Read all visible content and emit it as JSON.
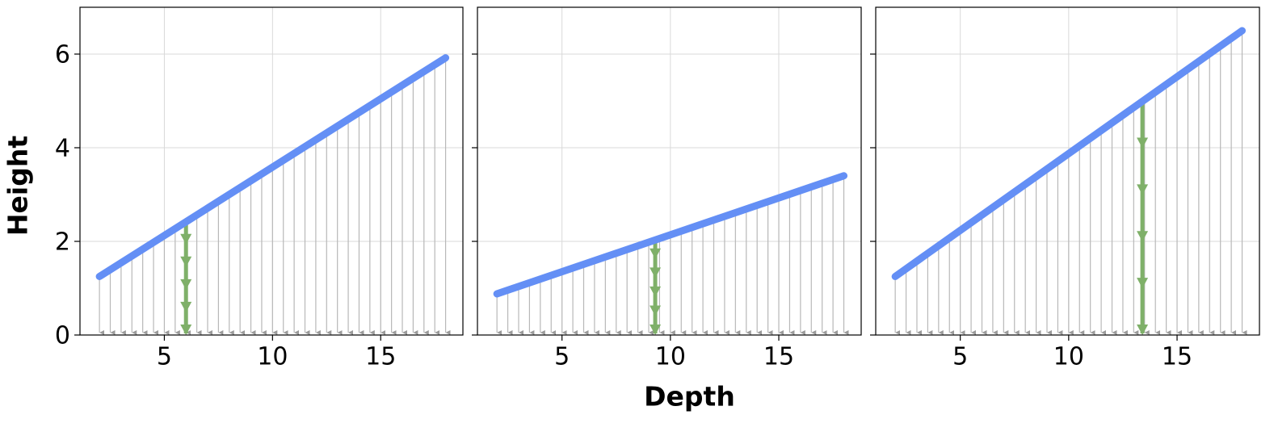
{
  "chart_data": [
    {
      "type": "arrow-field",
      "y_label": "Height",
      "xlim": [
        1.1,
        18.8
      ],
      "ylim": [
        0,
        7
      ],
      "xticks": [
        5,
        10,
        15
      ],
      "yticks": [
        0,
        2,
        4,
        6
      ],
      "grid": true,
      "line": {
        "color": "#648ff5",
        "x": [
          2,
          18
        ],
        "y": [
          1.25,
          5.92
        ]
      },
      "arrows": {
        "color": "#b8b8b8",
        "x": [
          2,
          2.5,
          3,
          3.5,
          4,
          4.5,
          5,
          5.5,
          6,
          6.5,
          7,
          7.5,
          8,
          8.5,
          9,
          9.5,
          10,
          10.5,
          11,
          11.5,
          12,
          12.5,
          13,
          13.5,
          14,
          14.5,
          15,
          15.5,
          16,
          16.5,
          17,
          17.5,
          18
        ],
        "tops": [
          1.25,
          1.4,
          1.54,
          1.69,
          1.83,
          1.98,
          2.13,
          2.27,
          2.42,
          2.56,
          2.71,
          2.86,
          3.0,
          3.15,
          3.29,
          3.44,
          3.59,
          3.73,
          3.88,
          4.02,
          4.17,
          4.32,
          4.46,
          4.61,
          4.75,
          4.9,
          5.05,
          5.19,
          5.34,
          5.48,
          5.63,
          5.78,
          5.92
        ]
      },
      "highlight": {
        "color": "#7fb069",
        "x": 6,
        "y": 2.42
      }
    },
    {
      "type": "arrow-field",
      "x_label": "Depth",
      "sharey": true,
      "xlim": [
        1.1,
        18.8
      ],
      "xticks": [
        5,
        10,
        15
      ],
      "grid": true,
      "line": {
        "color": "#648ff5",
        "x": [
          2,
          18
        ],
        "y": [
          0.88,
          3.4
        ]
      },
      "arrows": {
        "color": "#b8b8b8",
        "x": [
          2,
          2.5,
          3,
          3.5,
          4,
          4.5,
          5,
          5.5,
          6,
          6.5,
          7,
          7.5,
          8,
          8.5,
          9,
          9.5,
          10,
          10.5,
          11,
          11.5,
          12,
          12.5,
          13,
          13.5,
          14,
          14.5,
          15,
          15.5,
          16,
          16.5,
          17,
          17.5,
          18
        ],
        "tops": [
          0.88,
          0.96,
          1.04,
          1.12,
          1.2,
          1.27,
          1.35,
          1.43,
          1.51,
          1.59,
          1.67,
          1.75,
          1.83,
          1.9,
          1.98,
          2.06,
          2.14,
          2.22,
          2.3,
          2.38,
          2.46,
          2.53,
          2.61,
          2.69,
          2.77,
          2.85,
          2.93,
          3.01,
          3.09,
          3.16,
          3.24,
          3.32,
          3.4
        ]
      },
      "highlight": {
        "color": "#7fb069",
        "x": 9.3,
        "y": 2.03
      }
    },
    {
      "type": "arrow-field",
      "sharey": true,
      "xlim": [
        1.1,
        18.8
      ],
      "xticks": [
        5,
        10,
        15
      ],
      "grid": true,
      "line": {
        "color": "#648ff5",
        "x": [
          2,
          18
        ],
        "y": [
          1.25,
          6.5
        ]
      },
      "arrows": {
        "color": "#b8b8b8",
        "x": [
          2,
          2.5,
          3,
          3.5,
          4,
          4.5,
          5,
          5.5,
          6,
          6.5,
          7,
          7.5,
          8,
          8.5,
          9,
          9.5,
          10,
          10.5,
          11,
          11.5,
          12,
          12.5,
          13,
          13.5,
          14,
          14.5,
          15,
          15.5,
          16,
          16.5,
          17,
          17.5,
          18
        ],
        "tops": [
          1.25,
          1.41,
          1.58,
          1.74,
          1.91,
          2.07,
          2.23,
          2.4,
          2.56,
          2.73,
          2.89,
          3.05,
          3.22,
          3.38,
          3.55,
          3.71,
          3.88,
          4.04,
          4.2,
          4.37,
          4.53,
          4.7,
          4.86,
          5.02,
          5.19,
          5.35,
          5.52,
          5.68,
          5.84,
          6.01,
          6.17,
          6.34,
          6.5
        ]
      },
      "highlight": {
        "color": "#7fb069",
        "x": 13.4,
        "y": 4.99
      }
    }
  ]
}
